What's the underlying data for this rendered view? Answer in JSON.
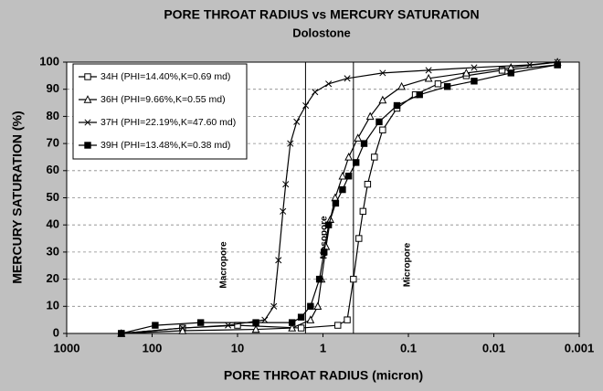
{
  "chart_data": {
    "type": "line",
    "title": "PORE THROAT RADIUS vs MERCURY SATURATION",
    "subtitle": "Dolostone",
    "x_label": "PORE THROAT RADIUS (micron)",
    "y_label": "MERCURY SATURATION (%)",
    "x_log": true,
    "xlim": [
      1000,
      0.001
    ],
    "xticks": [
      1000,
      100,
      10,
      1,
      0.1,
      0.01,
      0.001
    ],
    "ylim": [
      0,
      100
    ],
    "yticks": [
      0,
      10,
      20,
      30,
      40,
      50,
      60,
      70,
      80,
      90,
      100
    ],
    "grid": true,
    "legend": "upper left",
    "reference_lines": [
      1.6,
      0.44
    ],
    "annotations": [
      "Macropore",
      "Mesopore",
      "Micropore"
    ],
    "series": [
      {
        "name": "34H (PHI=14.40%,K=0.69 md)",
        "color": "#000000",
        "marker": "square-open",
        "x": [
          229,
          44,
          10,
          1.8,
          0.67,
          0.52,
          0.44,
          0.38,
          0.34,
          0.3,
          0.25,
          0.2,
          0.136,
          0.083,
          0.045,
          0.021,
          0.008,
          0.0018
        ],
        "values": [
          0,
          2,
          3,
          2,
          3,
          5,
          20,
          35,
          45,
          55,
          65,
          75,
          83,
          88,
          92,
          95,
          97,
          99
        ]
      },
      {
        "name": "36H (PHI=9.66%,K=0.55 md)",
        "color": "#000000",
        "marker": "triangle-open",
        "x": [
          229,
          44,
          6.1,
          2.3,
          1.4,
          1.15,
          1.04,
          0.92,
          0.82,
          0.72,
          0.59,
          0.5,
          0.39,
          0.28,
          0.2,
          0.12,
          0.058,
          0.021,
          0.0063,
          0.0018
        ],
        "values": [
          0,
          1,
          1.5,
          2,
          5,
          10,
          20,
          32,
          42,
          50,
          58,
          65,
          72,
          80,
          86,
          91,
          94,
          96,
          98,
          100
        ]
      },
      {
        "name": "37H (PHI=22.19%,K=47.60 md)",
        "color": "#000000",
        "marker": "x",
        "x": [
          229,
          44,
          12.9,
          4.8,
          3.76,
          3.32,
          2.94,
          2.73,
          2.41,
          2.03,
          1.59,
          1.24,
          0.86,
          0.52,
          0.2,
          0.058,
          0.017,
          0.0038,
          0.0018
        ],
        "values": [
          0,
          2,
          3,
          5,
          10,
          27,
          45,
          55,
          70,
          78,
          84,
          89,
          92,
          94,
          96,
          97,
          98,
          99,
          100
        ]
      },
      {
        "name": "39H (PHI=13.48%,K=0.38 md)",
        "color": "#000000",
        "marker": "square-filled",
        "x": [
          229,
          92,
          27,
          6.1,
          2.3,
          1.8,
          1.4,
          1.1,
          0.97,
          0.86,
          0.71,
          0.59,
          0.5,
          0.41,
          0.33,
          0.22,
          0.136,
          0.074,
          0.035,
          0.017,
          0.0063,
          0.0018
        ],
        "values": [
          0,
          3,
          4,
          4,
          4,
          6,
          10,
          20,
          30,
          40,
          48,
          53,
          58,
          63,
          70,
          78,
          84,
          88,
          91,
          93,
          96,
          99
        ]
      }
    ]
  }
}
